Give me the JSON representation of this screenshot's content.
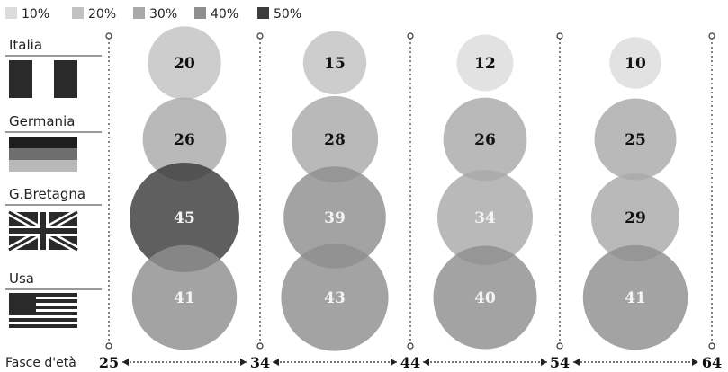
{
  "chart_data": {
    "type": "bubble",
    "title": "",
    "legend": {
      "placement": "top-left",
      "items": [
        {
          "label": "10%",
          "value": 10,
          "color": "#dcdcdc"
        },
        {
          "label": "20%",
          "value": 20,
          "color": "#c2c2c2"
        },
        {
          "label": "30%",
          "value": 30,
          "color": "#a9a9a9"
        },
        {
          "label": "40%",
          "value": 40,
          "color": "#8f8f8f"
        },
        {
          "label": "50%",
          "value": 50,
          "color": "#3c3c3c"
        }
      ]
    },
    "xlabel": "Fasce d'età",
    "age_ticks": [
      "25",
      "34",
      "44",
      "54",
      "64"
    ],
    "age_groups": [
      "25-34",
      "34-44",
      "44-54",
      "54-64"
    ],
    "series": [
      {
        "name": "Italia",
        "flag": "italy-flag",
        "values": [
          20,
          15,
          12,
          10
        ]
      },
      {
        "name": "Germania",
        "flag": "germany-flag",
        "values": [
          26,
          28,
          26,
          25
        ]
      },
      {
        "name": "G.Bretagna",
        "flag": "uk-flag",
        "values": [
          45,
          39,
          34,
          29
        ]
      },
      {
        "name": "Usa",
        "flag": "usa-flag",
        "values": [
          41,
          43,
          40,
          41
        ]
      }
    ]
  }
}
